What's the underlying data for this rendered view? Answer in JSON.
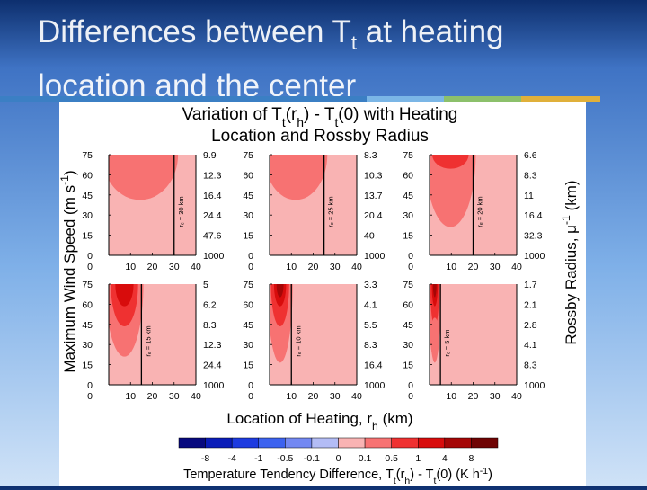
{
  "slide": {
    "title_part1": "Differences between T",
    "title_sub": "t",
    "title_part2": " at heating location and the center",
    "accent_colors": [
      "#3b7fc4",
      "#7bb6e6",
      "#8cc06b",
      "#e0b03a"
    ]
  },
  "chart_data": {
    "type": "heatmap",
    "title_line1_parts": [
      {
        "t": "Variation of T",
        "s": "n"
      },
      {
        "t": "t",
        "s": "sub"
      },
      {
        "t": "(r",
        "s": "n"
      },
      {
        "t": "h",
        "s": "sub"
      },
      {
        "t": ") - T",
        "s": "n"
      },
      {
        "t": "t",
        "s": "sub"
      },
      {
        "t": "(0) with Heating",
        "s": "n"
      }
    ],
    "title_line2": "Location and Rossby Radius",
    "ylabel_parts": [
      {
        "t": "Maximum Wind Speed (m s",
        "s": "n"
      },
      {
        "t": "-1",
        "s": "sup"
      },
      {
        "t": ")",
        "s": "n"
      }
    ],
    "ylabel_right_parts": [
      {
        "t": "Rossby Radius, μ",
        "s": "n"
      },
      {
        "t": "-1",
        "s": "sup"
      },
      {
        "t": " (km)",
        "s": "n"
      }
    ],
    "xlabel_parts": [
      {
        "t": "Location of Heating, r",
        "s": "n"
      },
      {
        "t": "h",
        "s": "sub"
      },
      {
        "t": " (km)",
        "s": "n"
      }
    ],
    "x_ticks": [
      "10",
      "20",
      "30",
      "40"
    ],
    "x_ticks_zero": "0",
    "y_ticks": [
      "75",
      "60",
      "45",
      "30",
      "15",
      "0"
    ],
    "xlim": [
      0,
      40
    ],
    "ylim": [
      0,
      75
    ],
    "panels": [
      {
        "re": 30,
        "re_label": "rₑ = 30 km",
        "rossby_ticks": [
          "9.9",
          "12.3",
          "16.4",
          "24.4",
          "47.6",
          "1000"
        ]
      },
      {
        "re": 25,
        "re_label": "rₑ = 25 km",
        "rossby_ticks": [
          "8.3",
          "10.3",
          "13.7",
          "20.4",
          "40",
          "1000"
        ]
      },
      {
        "re": 20,
        "re_label": "rₑ = 20 km",
        "rossby_ticks": [
          "6.6",
          "8.3",
          "11",
          "16.4",
          "32.3",
          "1000"
        ]
      },
      {
        "re": 15,
        "re_label": "rₑ = 15 km",
        "rossby_ticks": [
          "5",
          "6.2",
          "8.3",
          "12.3",
          "24.4",
          "1000"
        ]
      },
      {
        "re": 10,
        "re_label": "rₑ = 10 km",
        "rossby_ticks": [
          "3.3",
          "4.1",
          "5.5",
          "8.3",
          "16.4",
          "1000"
        ]
      },
      {
        "re": 5,
        "re_label": "rₑ = 5 km",
        "rossby_ticks": [
          "1.7",
          "2.1",
          "2.8",
          "4.1",
          "8.3",
          "1000"
        ]
      }
    ],
    "colorbar": {
      "labels": [
        "-8",
        "-4",
        "-1",
        "-0.5",
        "-0.1",
        "0",
        "0.1",
        "0.5",
        "1",
        "4",
        "8"
      ],
      "colors": [
        "#07097e",
        "#0a1cb8",
        "#1d3be0",
        "#3c62ef",
        "#7388f2",
        "#b3bcf5",
        "#f9b3b3",
        "#f77272",
        "#ef3131",
        "#d80c0c",
        "#a50606",
        "#6f0303"
      ],
      "label_parts": [
        {
          "t": "Temperature Tendency Difference, T",
          "s": "n"
        },
        {
          "t": "t",
          "s": "sub"
        },
        {
          "t": "(r",
          "s": "n"
        },
        {
          "t": "h",
          "s": "sub"
        },
        {
          "t": ") - T",
          "s": "n"
        },
        {
          "t": "t",
          "s": "sub"
        },
        {
          "t": "(0) (K h",
          "s": "n"
        },
        {
          "t": "-1",
          "s": "sup"
        },
        {
          "t": ")",
          "s": "n"
        }
      ]
    },
    "background_value_color": "#f9b3b3",
    "contour_colors": [
      "#f77272",
      "#ef3131",
      "#d80c0c",
      "#a50606"
    ]
  }
}
